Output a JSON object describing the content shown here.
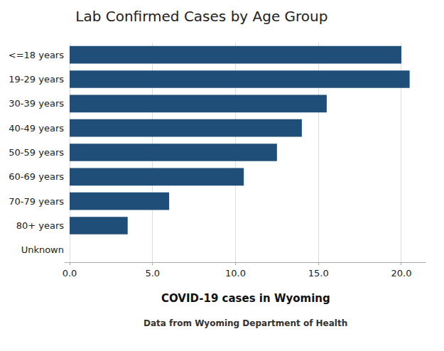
{
  "chart_data": {
    "type": "bar",
    "orientation": "horizontal",
    "title": "Lab Confirmed Cases by Age Group",
    "annotations": [
      "COVID-19 cases in Wyoming",
      "Data from Wyoming Department of Health"
    ],
    "categories": [
      "<=18 years",
      "19-29 years",
      "30-39 years",
      "40-49 years",
      "50-59 years",
      "60-69 years",
      "70-79 years",
      "80+ years",
      "Unknown"
    ],
    "values": [
      20.0,
      20.5,
      15.5,
      14.0,
      12.5,
      10.5,
      6.0,
      3.5,
      0.0
    ],
    "color": "#1F4E79",
    "xlim": [
      -0.3,
      21.5
    ],
    "xticks": [
      {
        "value": 0.0,
        "label": "0.0"
      },
      {
        "value": 5.0,
        "label": "5.0"
      },
      {
        "value": 10.0,
        "label": "10.0"
      },
      {
        "value": 15.0,
        "label": "15.0"
      },
      {
        "value": 20.0,
        "label": "20.0"
      }
    ],
    "grid": true
  }
}
